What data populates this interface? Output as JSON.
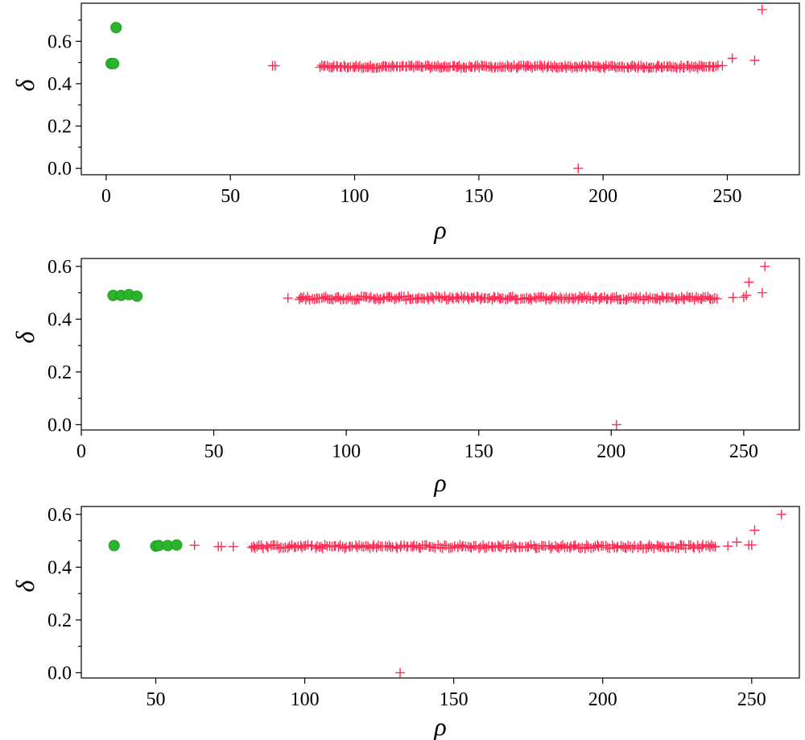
{
  "colors": {
    "cluster": "#2ab52a",
    "outlier": "#ff2d55"
  },
  "chart_data": [
    {
      "type": "scatter",
      "xlabel": "ρ",
      "ylabel": "δ",
      "xlim": [
        -10,
        279
      ],
      "ylim": [
        -0.03,
        0.78
      ],
      "xticks": [
        0,
        50,
        100,
        150,
        200,
        250
      ],
      "xtick_labels": [
        "0",
        "50",
        "100",
        "150",
        "200",
        "250"
      ],
      "yticks": [
        0.0,
        0.2,
        0.4,
        0.6
      ],
      "ytick_labels": [
        "0.0",
        "0.2",
        "0.4",
        "0.6"
      ],
      "series": [
        {
          "marker": "circle",
          "color": "#2ab52a",
          "points": [
            [
              2,
              0.495
            ],
            [
              3,
              0.495
            ],
            [
              4,
              0.665
            ]
          ]
        },
        {
          "marker": "plus",
          "color": "#ff2d55",
          "band": {
            "x_start": 86,
            "x_end": 246,
            "y": 0.48
          },
          "points": [
            [
              67,
              0.485
            ],
            [
              68,
              0.485
            ],
            [
              248,
              0.485
            ],
            [
              252,
              0.52
            ],
            [
              261,
              0.51
            ],
            [
              264,
              0.75
            ],
            [
              190,
              0.0
            ]
          ]
        }
      ]
    },
    {
      "type": "scatter",
      "xlabel": "ρ",
      "ylabel": "δ",
      "xlim": [
        0,
        271
      ],
      "ylim": [
        -0.02,
        0.63
      ],
      "xticks": [
        0,
        50,
        100,
        150,
        200,
        250
      ],
      "xtick_labels": [
        "0",
        "50",
        "100",
        "150",
        "200",
        "250"
      ],
      "yticks": [
        0.0,
        0.2,
        0.4,
        0.6
      ],
      "ytick_labels": [
        "0.0",
        "0.2",
        "0.4",
        "0.6"
      ],
      "series": [
        {
          "marker": "circle",
          "color": "#2ab52a",
          "points": [
            [
              12,
              0.49
            ],
            [
              15,
              0.49
            ],
            [
              18,
              0.493
            ],
            [
              21,
              0.487
            ]
          ]
        },
        {
          "marker": "plus",
          "color": "#ff2d55",
          "band": {
            "x_start": 82,
            "x_end": 240,
            "y": 0.48
          },
          "points": [
            [
              78,
              0.48
            ],
            [
              246,
              0.482
            ],
            [
              250,
              0.483
            ],
            [
              251,
              0.49
            ],
            [
              252,
              0.54
            ],
            [
              257,
              0.5
            ],
            [
              258,
              0.6
            ],
            [
              202,
              0.0
            ]
          ]
        }
      ]
    },
    {
      "type": "scatter",
      "xlabel": "ρ",
      "ylabel": "δ",
      "xlim": [
        25,
        266
      ],
      "ylim": [
        -0.02,
        0.63
      ],
      "xticks": [
        50,
        100,
        150,
        200,
        250
      ],
      "xtick_labels": [
        "50",
        "100",
        "150",
        "200",
        "250"
      ],
      "yticks": [
        0.0,
        0.2,
        0.4,
        0.6
      ],
      "ytick_labels": [
        "0.0",
        "0.2",
        "0.4",
        "0.6"
      ],
      "series": [
        {
          "marker": "circle",
          "color": "#2ab52a",
          "points": [
            [
              36,
              0.482
            ],
            [
              50,
              0.48
            ],
            [
              51,
              0.482
            ],
            [
              54,
              0.482
            ],
            [
              57,
              0.484
            ]
          ]
        },
        {
          "marker": "plus",
          "color": "#ff2d55",
          "band": {
            "x_start": 82,
            "x_end": 238,
            "y": 0.478
          },
          "points": [
            [
              63,
              0.483
            ],
            [
              71,
              0.478
            ],
            [
              72,
              0.478
            ],
            [
              76,
              0.478
            ],
            [
              242,
              0.48
            ],
            [
              245,
              0.495
            ],
            [
              249,
              0.484
            ],
            [
              250,
              0.484
            ],
            [
              251,
              0.54
            ],
            [
              260,
              0.6
            ],
            [
              132,
              0.0
            ]
          ]
        }
      ]
    }
  ]
}
